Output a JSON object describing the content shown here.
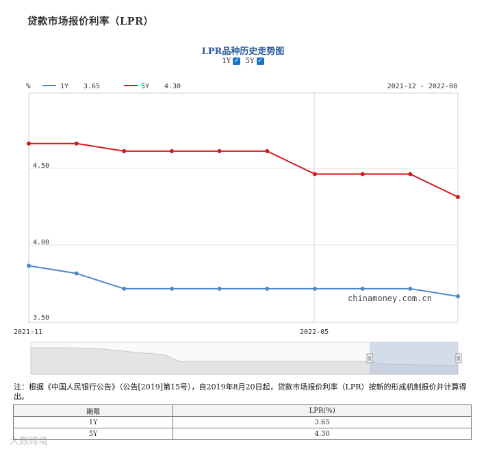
{
  "page": {
    "title": "贷款市场报价利率（LPR）"
  },
  "chart_data": {
    "type": "line",
    "title": "LPR品种历史走势图",
    "unit": "%",
    "toggles": [
      {
        "label": "1Y",
        "checked": true
      },
      {
        "label": "5Y",
        "checked": true
      }
    ],
    "date_range": "2021-12 - 2022-08",
    "x_tick_labels": [
      "2021-11",
      "2022-05"
    ],
    "y_tick_labels": [
      "4.50",
      "4.00",
      "3.50"
    ],
    "ylim": [
      3.48,
      4.98
    ],
    "watermark": "chinamoney.com.cn",
    "x_points": 10,
    "series": [
      {
        "name": "1Y",
        "legend_value": "3.65",
        "color": "#4f88c8",
        "values": [
          3.85,
          3.8,
          3.7,
          3.7,
          3.7,
          3.7,
          3.7,
          3.7,
          3.7,
          3.65
        ]
      },
      {
        "name": "5Y",
        "legend_value": "4.30",
        "color": "#d11a1a",
        "values": [
          4.65,
          4.65,
          4.6,
          4.6,
          4.6,
          4.6,
          4.45,
          4.45,
          4.45,
          4.3
        ]
      }
    ]
  },
  "footnote": "注：根据《中国人民银行公告》（公告[2019]第15号），自2019年8月20日起，贷款市场报价利率（LPR）按新的形成机制报价并计算得出。",
  "table": {
    "headers": [
      "期限",
      "LPR(%)"
    ],
    "rows": [
      {
        "term": "1Y",
        "rate": "3.65"
      },
      {
        "term": "5Y",
        "rate": "4.30"
      }
    ]
  },
  "watermark_text": "大数跨境"
}
